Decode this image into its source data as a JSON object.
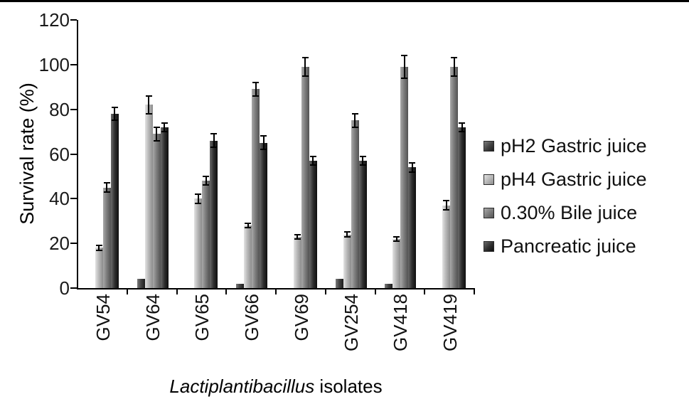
{
  "chart_data": {
    "type": "bar",
    "title": "",
    "ylabel": "Survival rate (%)",
    "xlabel": "Lactiplantibacillus isolates",
    "xlabel_italic": "Lactiplantibacillus",
    "xlabel_rest": " isolates",
    "ylim": [
      0,
      120
    ],
    "yticks": [
      0,
      20,
      40,
      60,
      80,
      100,
      120
    ],
    "grid": false,
    "legend_position": "right",
    "categories": [
      "GV54",
      "GV64",
      "GV65",
      "GV66",
      "GV69",
      "GV254",
      "GV418",
      "GV419"
    ],
    "series": [
      {
        "name": "pH2 Gastric juice",
        "color_light": "#7a7a7a",
        "color": "#404040",
        "color_dark": "#1c1c1c",
        "values": [
          0,
          4,
          0,
          2,
          0,
          4,
          2,
          0
        ],
        "errors": [
          0,
          0,
          0,
          0,
          0,
          0,
          0,
          0
        ]
      },
      {
        "name": "pH4 Gastric juice",
        "color_light": "#e2e2e2",
        "color": "#b4b4b4",
        "color_dark": "#8c8c8c",
        "values": [
          18,
          82,
          40,
          28,
          23,
          24,
          22,
          37
        ],
        "errors": [
          1,
          4,
          2,
          1,
          1,
          1,
          1,
          2
        ]
      },
      {
        "name": "0.30% Bile juice",
        "color_light": "#a8a8a8",
        "color": "#7a7a7a",
        "color_dark": "#525252",
        "values": [
          45,
          69,
          48,
          89,
          99,
          75,
          99,
          99
        ],
        "errors": [
          2,
          3,
          2,
          3,
          4,
          3,
          5,
          4
        ]
      },
      {
        "name": "Pancreatic juice",
        "color_light": "#6a6a6a",
        "color": "#2e2e2e",
        "color_dark": "#0e0e0e",
        "values": [
          78,
          72,
          66,
          65,
          57,
          57,
          54,
          72
        ],
        "errors": [
          3,
          2,
          3,
          3,
          2,
          2,
          2,
          2
        ]
      }
    ]
  }
}
